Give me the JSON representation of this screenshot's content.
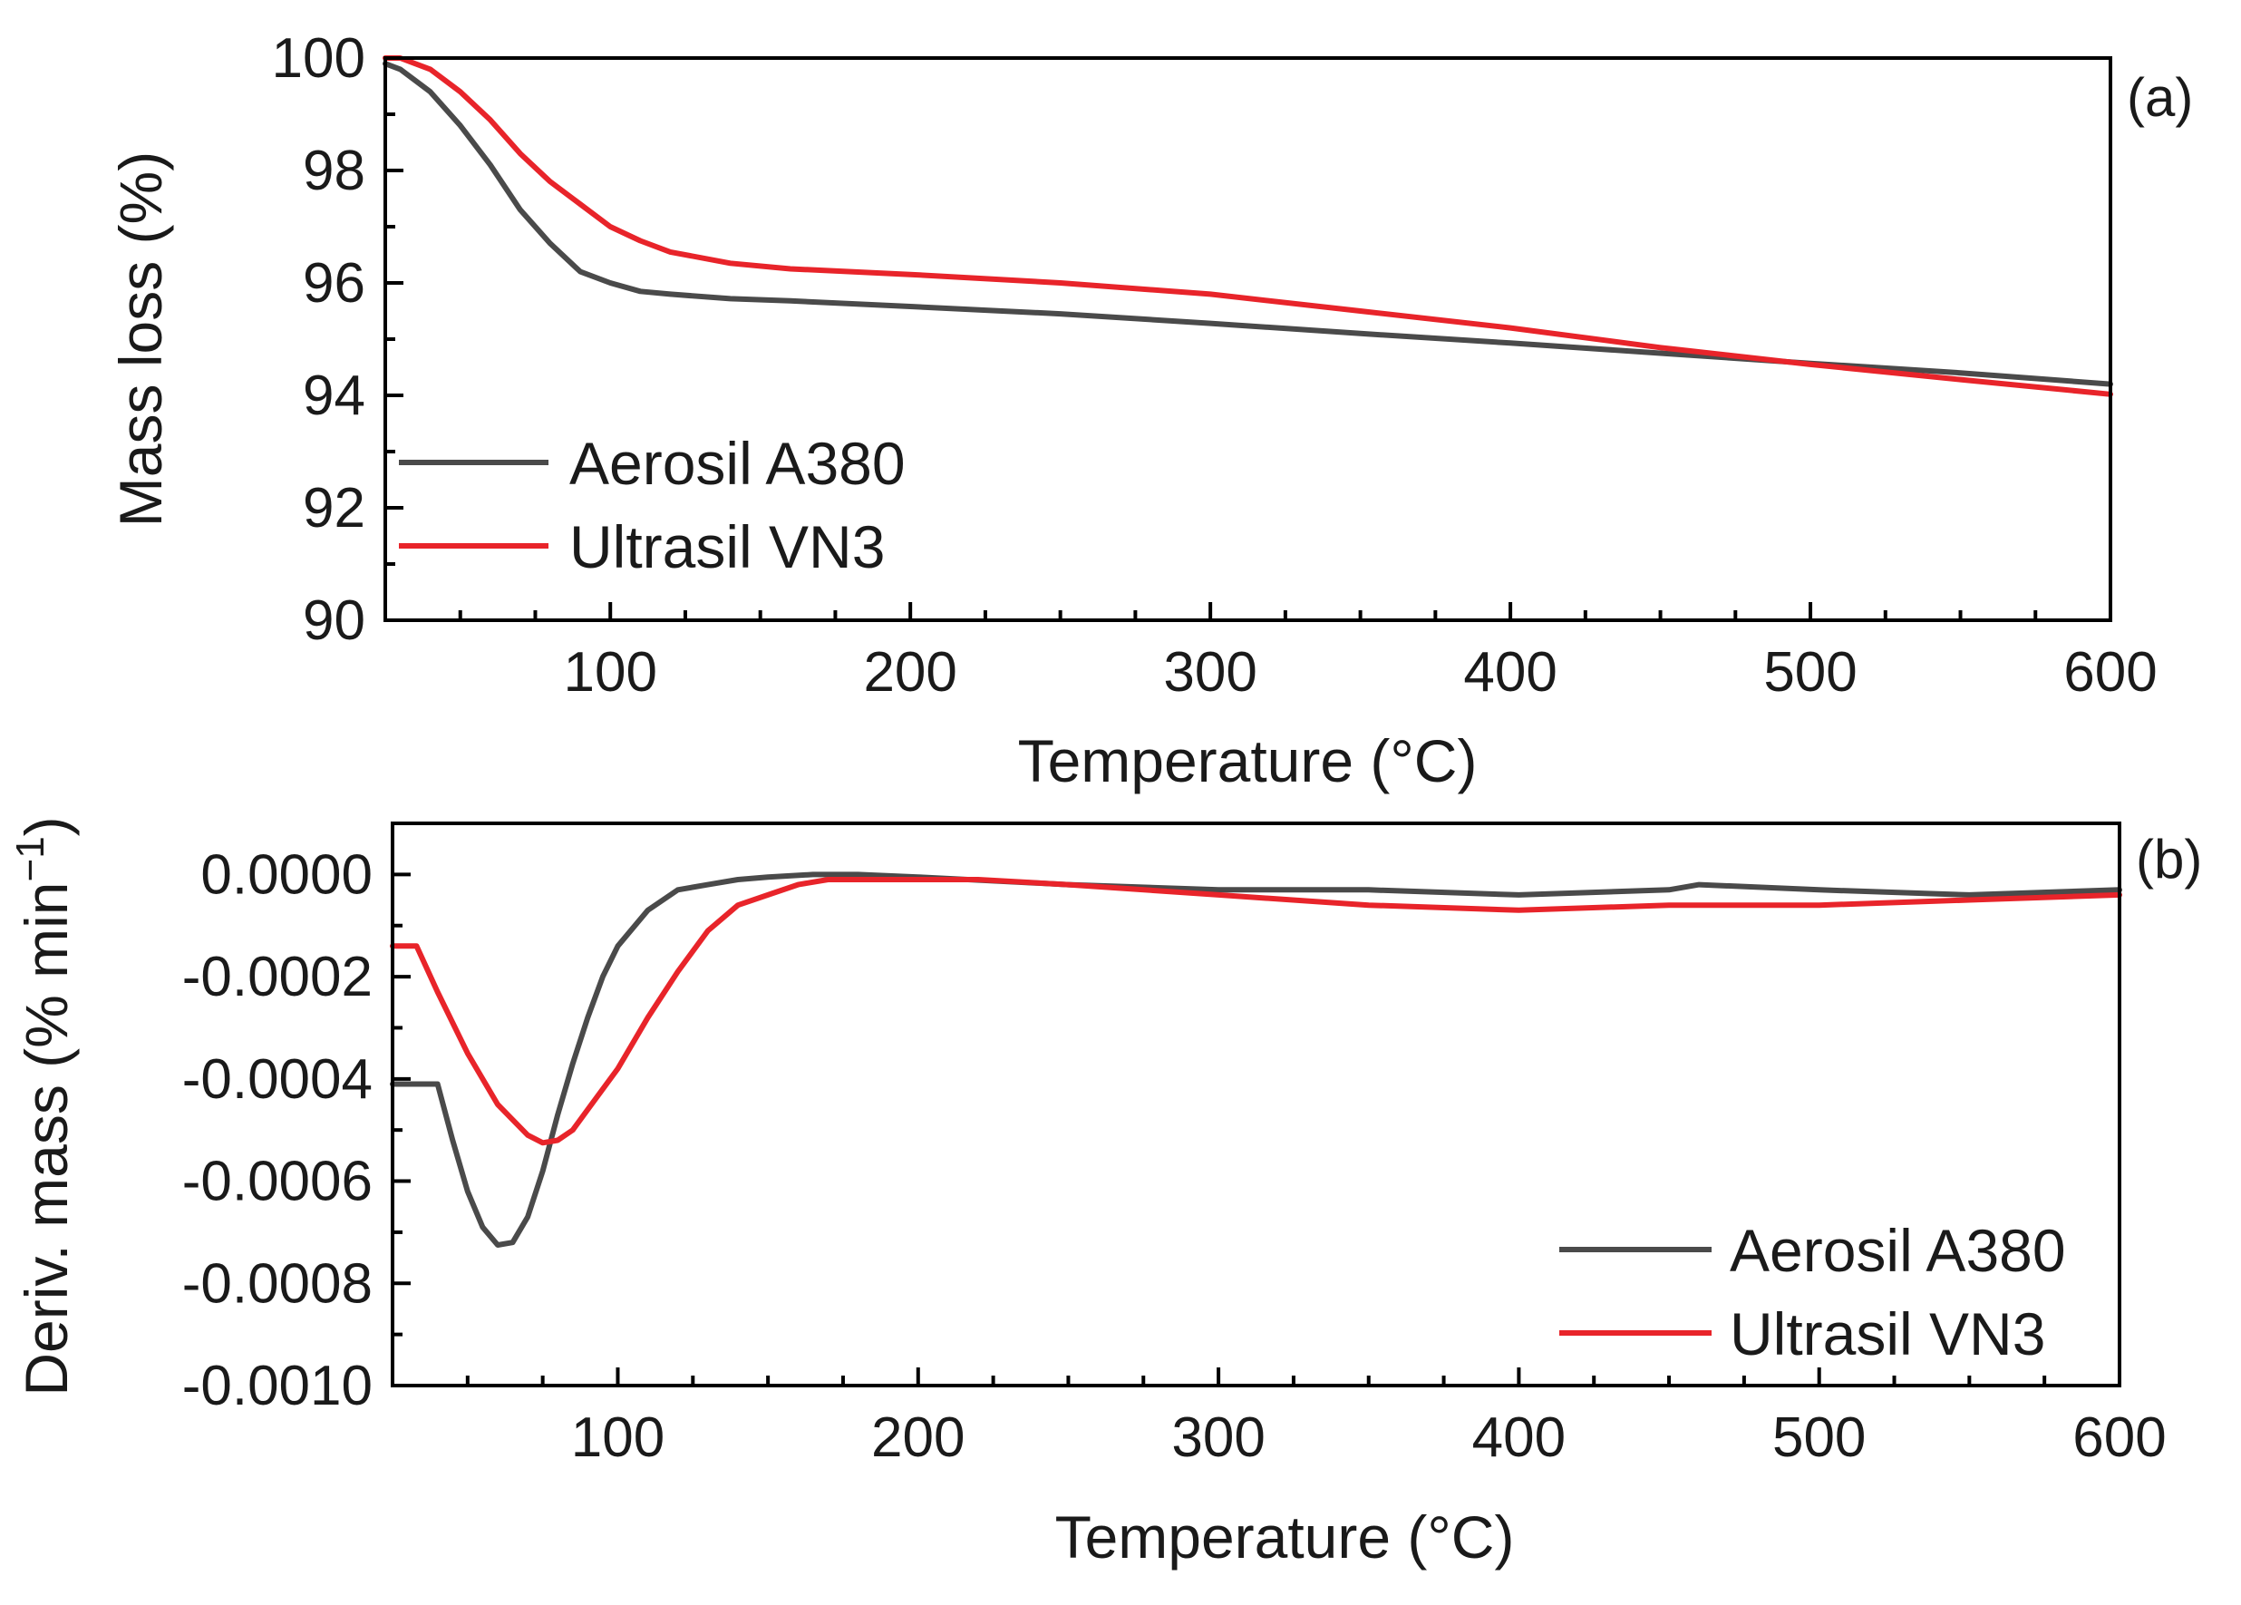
{
  "chart_data": [
    {
      "type": "line",
      "panel_label": "(a)",
      "xlabel": "Temperature (°C)",
      "ylabel": "Mass loss (%)",
      "xlim": [
        25,
        600
      ],
      "ylim": [
        90,
        100
      ],
      "xticks": [
        "100",
        "200",
        "300",
        "400",
        "500",
        "600"
      ],
      "yticks": [
        "90",
        "92",
        "94",
        "96",
        "98",
        "100"
      ],
      "legend_position": "center-left",
      "series": [
        {
          "name": "Aerosil A380",
          "color": "#4a4a4a",
          "x": [
            25,
            30,
            40,
            50,
            60,
            70,
            80,
            90,
            100,
            110,
            120,
            140,
            160,
            200,
            250,
            300,
            350,
            400,
            450,
            500,
            550,
            600
          ],
          "y": [
            99.9,
            99.8,
            99.4,
            98.8,
            98.1,
            97.3,
            96.7,
            96.2,
            96.0,
            95.85,
            95.8,
            95.72,
            95.68,
            95.58,
            95.45,
            95.28,
            95.1,
            94.93,
            94.75,
            94.57,
            94.4,
            94.2
          ]
        },
        {
          "name": "Ultrasil VN3",
          "color": "#e8242a",
          "x": [
            25,
            30,
            40,
            50,
            60,
            70,
            80,
            90,
            100,
            110,
            120,
            140,
            160,
            200,
            250,
            300,
            350,
            400,
            450,
            500,
            550,
            600
          ],
          "y": [
            100.0,
            100.0,
            99.8,
            99.4,
            98.9,
            98.3,
            97.8,
            97.4,
            97.0,
            96.75,
            96.55,
            96.35,
            96.25,
            96.15,
            96.0,
            95.8,
            95.5,
            95.2,
            94.85,
            94.55,
            94.28,
            94.02
          ]
        }
      ]
    },
    {
      "type": "line",
      "panel_label": "(b)",
      "xlabel": "Temperature (°C)",
      "ylabel": "Deriv. mass (% min",
      "ylabel_superscript": "−1",
      "ylabel_close": ")",
      "xlim": [
        25,
        600
      ],
      "ylim": [
        -0.001,
        0.0001
      ],
      "xticks": [
        "100",
        "200",
        "300",
        "400",
        "500",
        "600"
      ],
      "yticks": [
        "-0.0010",
        "-0.0008",
        "-0.0006",
        "-0.0004",
        "-0.0002",
        "0.0000"
      ],
      "legend_position": "bottom-right",
      "series": [
        {
          "name": "Aerosil A380",
          "color": "#4a4a4a",
          "x": [
            25,
            40,
            45,
            50,
            55,
            60,
            65,
            70,
            75,
            80,
            85,
            90,
            95,
            100,
            110,
            120,
            130,
            140,
            150,
            165,
            180,
            200,
            250,
            300,
            350,
            400,
            450,
            460,
            500,
            550,
            600
          ],
          "y": [
            -0.00041,
            -0.00041,
            -0.00052,
            -0.00062,
            -0.00069,
            -0.000725,
            -0.00072,
            -0.00067,
            -0.00058,
            -0.00047,
            -0.00037,
            -0.00028,
            -0.0002,
            -0.00014,
            -7e-05,
            -3e-05,
            -2e-05,
            -1e-05,
            -5e-06,
            0.0,
            0.0,
            -5e-06,
            -2e-05,
            -3e-05,
            -3e-05,
            -4e-05,
            -3e-05,
            -2e-05,
            -3e-05,
            -4e-05,
            -3e-05
          ]
        },
        {
          "name": "Ultrasil VN3",
          "color": "#e8242a",
          "x": [
            25,
            33,
            40,
            50,
            60,
            70,
            75,
            80,
            85,
            90,
            100,
            110,
            120,
            130,
            140,
            150,
            160,
            170,
            180,
            200,
            220,
            250,
            300,
            350,
            400,
            450,
            500,
            550,
            600
          ],
          "y": [
            -0.00014,
            -0.00014,
            -0.00023,
            -0.00035,
            -0.00045,
            -0.00051,
            -0.000525,
            -0.00052,
            -0.0005,
            -0.00046,
            -0.00038,
            -0.00028,
            -0.00019,
            -0.00011,
            -6e-05,
            -4e-05,
            -2e-05,
            -1e-05,
            -1e-05,
            -1e-05,
            -1e-05,
            -2e-05,
            -4e-05,
            -6e-05,
            -7e-05,
            -6e-05,
            -6e-05,
            -5e-05,
            -4e-05
          ]
        }
      ]
    }
  ]
}
